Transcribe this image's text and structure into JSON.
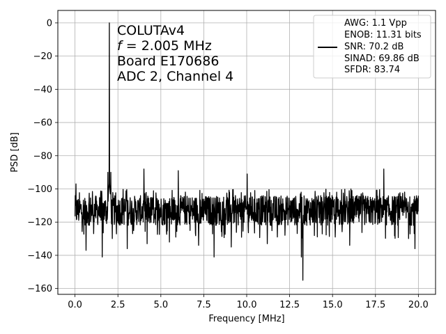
{
  "chart_data": {
    "type": "line",
    "xlabel": "Frequency [MHz]",
    "ylabel": "PSD [dB]",
    "xlim": [
      -1.0,
      21.0
    ],
    "ylim": [
      -163.5,
      7.5
    ],
    "xticks": [
      0.0,
      2.5,
      5.0,
      7.5,
      10.0,
      12.5,
      15.0,
      17.5,
      20.0
    ],
    "xtick_labels": [
      "0.0",
      "2.5",
      "5.0",
      "7.5",
      "10.0",
      "12.5",
      "15.0",
      "17.5",
      "20.0"
    ],
    "yticks": [
      0,
      -20,
      -40,
      -60,
      -80,
      -100,
      -120,
      -140,
      -160
    ],
    "ytick_labels": [
      "0",
      "−20",
      "−40",
      "−60",
      "−80",
      "−100",
      "−120",
      "−140",
      "−160"
    ],
    "grid": true,
    "annotations": [
      "COLUTAv4",
      "f = 2.005 MHz",
      "Board E170686",
      "ADC 2, Channel 4"
    ],
    "legend": {
      "placement": "top-right",
      "entries": [
        "AWG: 1.1 Vpp",
        "ENOB: 11.31 bits",
        "SNR: 70.2 dB",
        "SINAD: 69.86 dB",
        "SFDR: 83.74"
      ]
    },
    "series": [
      {
        "color": "#000000",
        "noise_floor_mean": -113,
        "noise_floor_range": [
          -125,
          -100
        ],
        "x_range": [
          0.0,
          20.0
        ],
        "peaks": [
          {
            "x": 2.005,
            "y": 0
          },
          {
            "x": 4.01,
            "y": -88
          },
          {
            "x": 6.015,
            "y": -89
          },
          {
            "x": 10.025,
            "y": -91
          },
          {
            "x": 17.98,
            "y": -88
          },
          {
            "x": 0.05,
            "y": -97
          },
          {
            "x": 1.92,
            "y": -90
          },
          {
            "x": 2.09,
            "y": -90
          }
        ],
        "dips": [
          {
            "x": 1.58,
            "y": -141
          },
          {
            "x": 8.1,
            "y": -141
          },
          {
            "x": 13.18,
            "y": -141
          },
          {
            "x": 13.27,
            "y": -155
          },
          {
            "x": 0.65,
            "y": -137
          },
          {
            "x": 3.05,
            "y": -136
          },
          {
            "x": 4.2,
            "y": -133
          },
          {
            "x": 5.5,
            "y": -132
          },
          {
            "x": 7.2,
            "y": -134
          },
          {
            "x": 9.1,
            "y": -135
          },
          {
            "x": 11.2,
            "y": -133
          },
          {
            "x": 16.0,
            "y": -134
          },
          {
            "x": 19.8,
            "y": -136
          }
        ]
      }
    ]
  }
}
